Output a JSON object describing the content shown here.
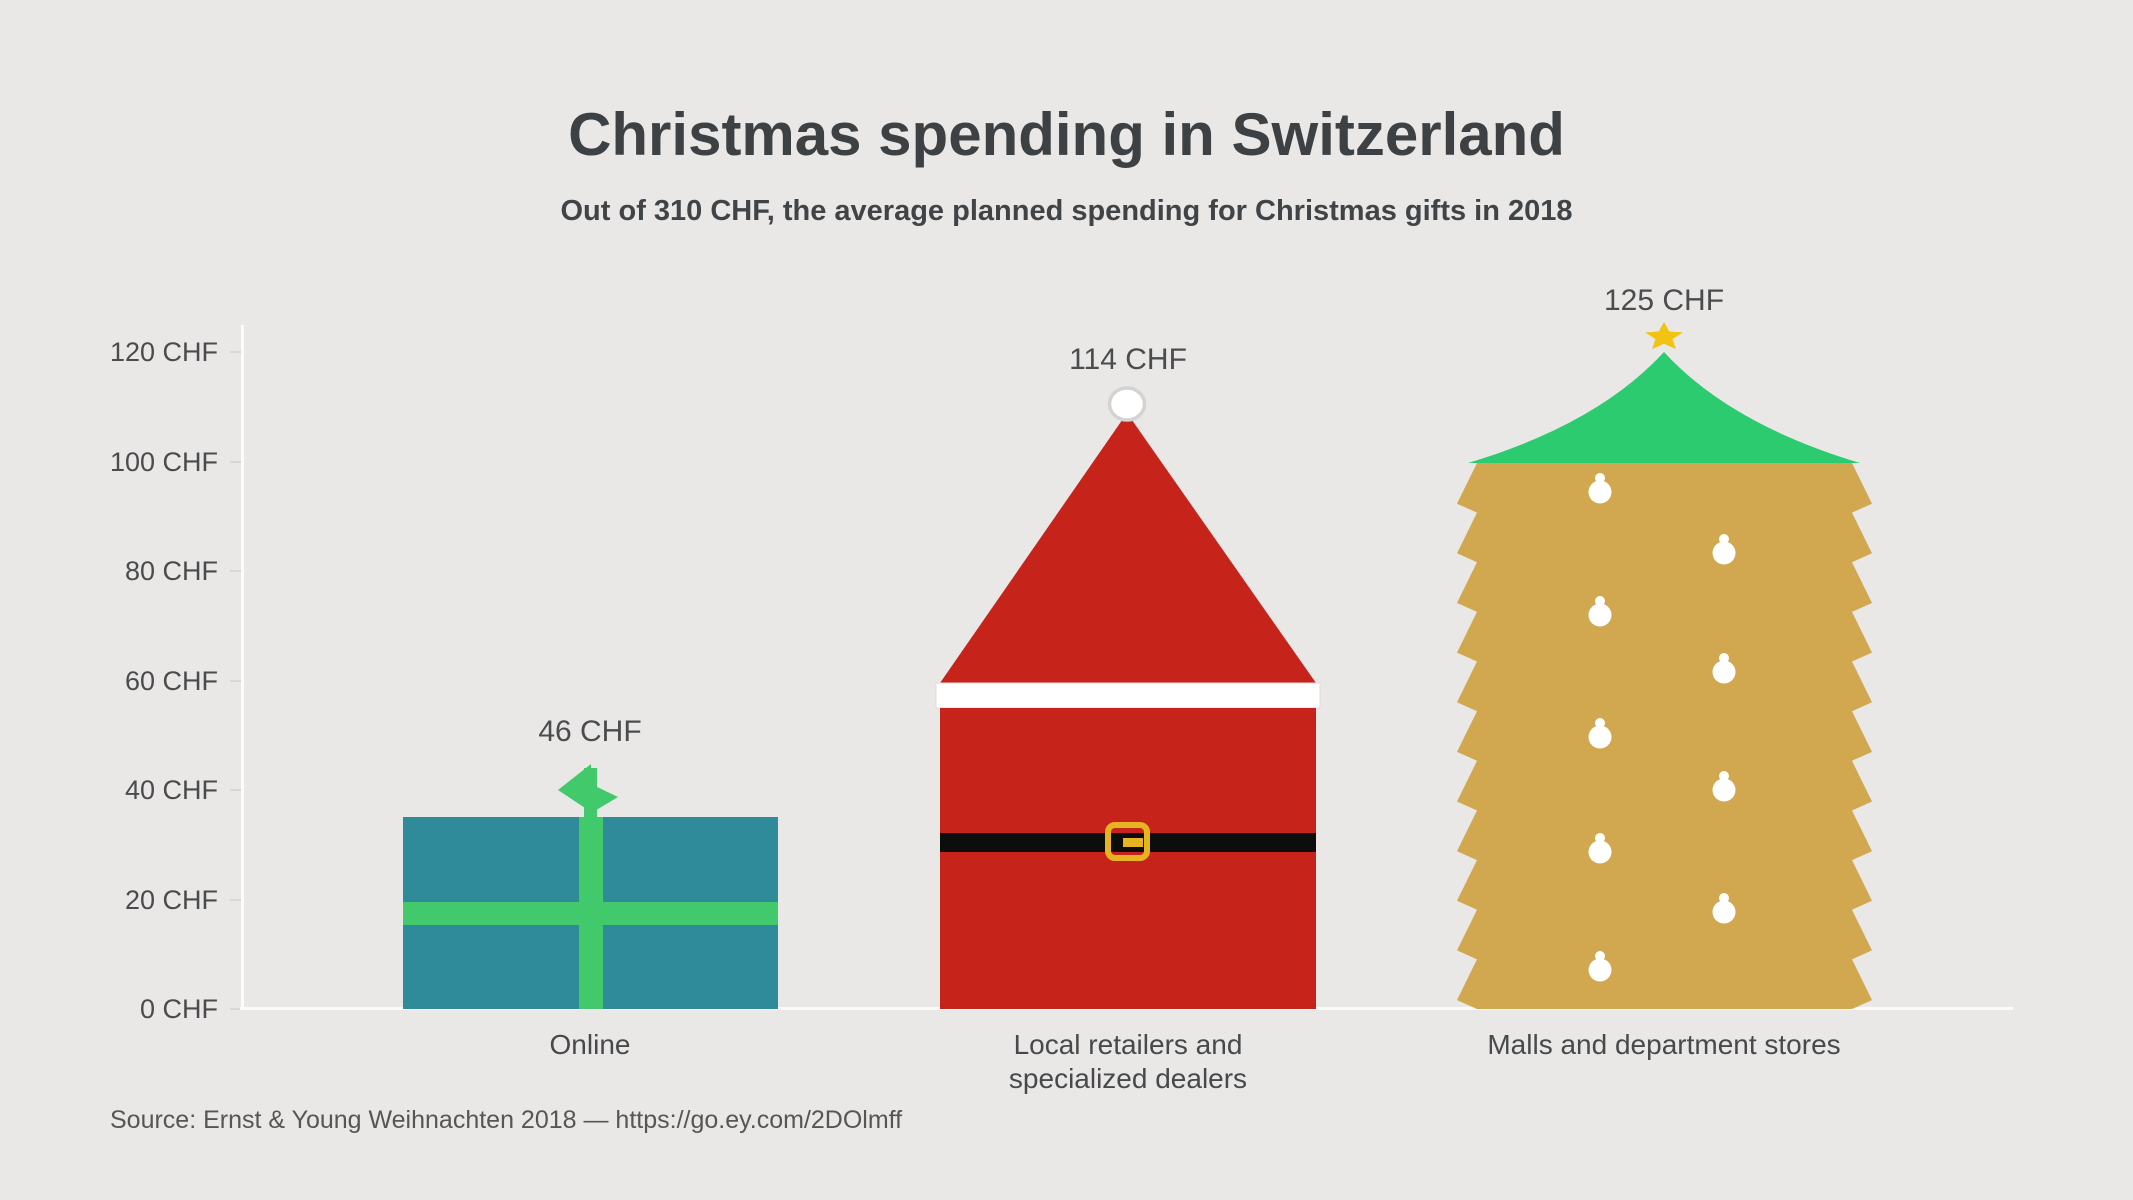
{
  "page": {
    "background": "#e9e8e7"
  },
  "header": {
    "title": "Christmas spending in Switzerland",
    "subtitle": "Out of 310 CHF, the average planned spending for Christmas gifts in 2018"
  },
  "chart_data": {
    "type": "bar",
    "title": "Christmas spending in Switzerland",
    "subtitle": "Out of 310 CHF, the average planned spending for Christmas gifts in 2018",
    "unit": "CHF",
    "total_reference": 310,
    "categories": [
      "Online",
      "Local retailers and specialized dealers",
      "Malls and department stores"
    ],
    "values": [
      46,
      114,
      125
    ],
    "value_labels": [
      "46 CHF",
      "114 CHF",
      "125 CHF"
    ],
    "pictograms": [
      "gift-icon",
      "santa-icon",
      "christmas-tree-icon"
    ],
    "ylim": [
      0,
      120
    ],
    "yticks": [
      0,
      20,
      40,
      60,
      80,
      100,
      120
    ],
    "ytick_labels_desc": [
      "120 CHF",
      "100 CHF",
      "80 CHF",
      "60 CHF",
      "40 CHF",
      "20 CHF",
      "0 CHF"
    ],
    "grid": false,
    "legend": false
  },
  "category_labels": {
    "online": "Online",
    "local_line1": "Local retailers and",
    "local_line2": "specialized dealers",
    "malls": "Malls and department stores"
  },
  "footer": {
    "source": "Source: Ernst & Young Weihnachten 2018 — https://go.ey.com/2DOlmff"
  },
  "colors": {
    "background": "#e9e8e7",
    "title_text": "#3e4143",
    "axis_text": "#4a4b4c",
    "axis_line": "#fbfbfb",
    "tick": "#d8d7d6",
    "gift_box_teal": "#2f8b99",
    "ribbon_green": "#42c96b",
    "santa_red": "#c6231b",
    "hat_band_white": "#ffffff",
    "pompom_stroke": "#d5d3d1",
    "belt_black": "#0d0d0d",
    "buckle_gold": "#e6b422",
    "tree_trunk_gold": "#d1a850",
    "tree_canopy_green": "#2dcb6f",
    "star_gold": "#f2c312",
    "ornament_white": "#ffffff"
  }
}
